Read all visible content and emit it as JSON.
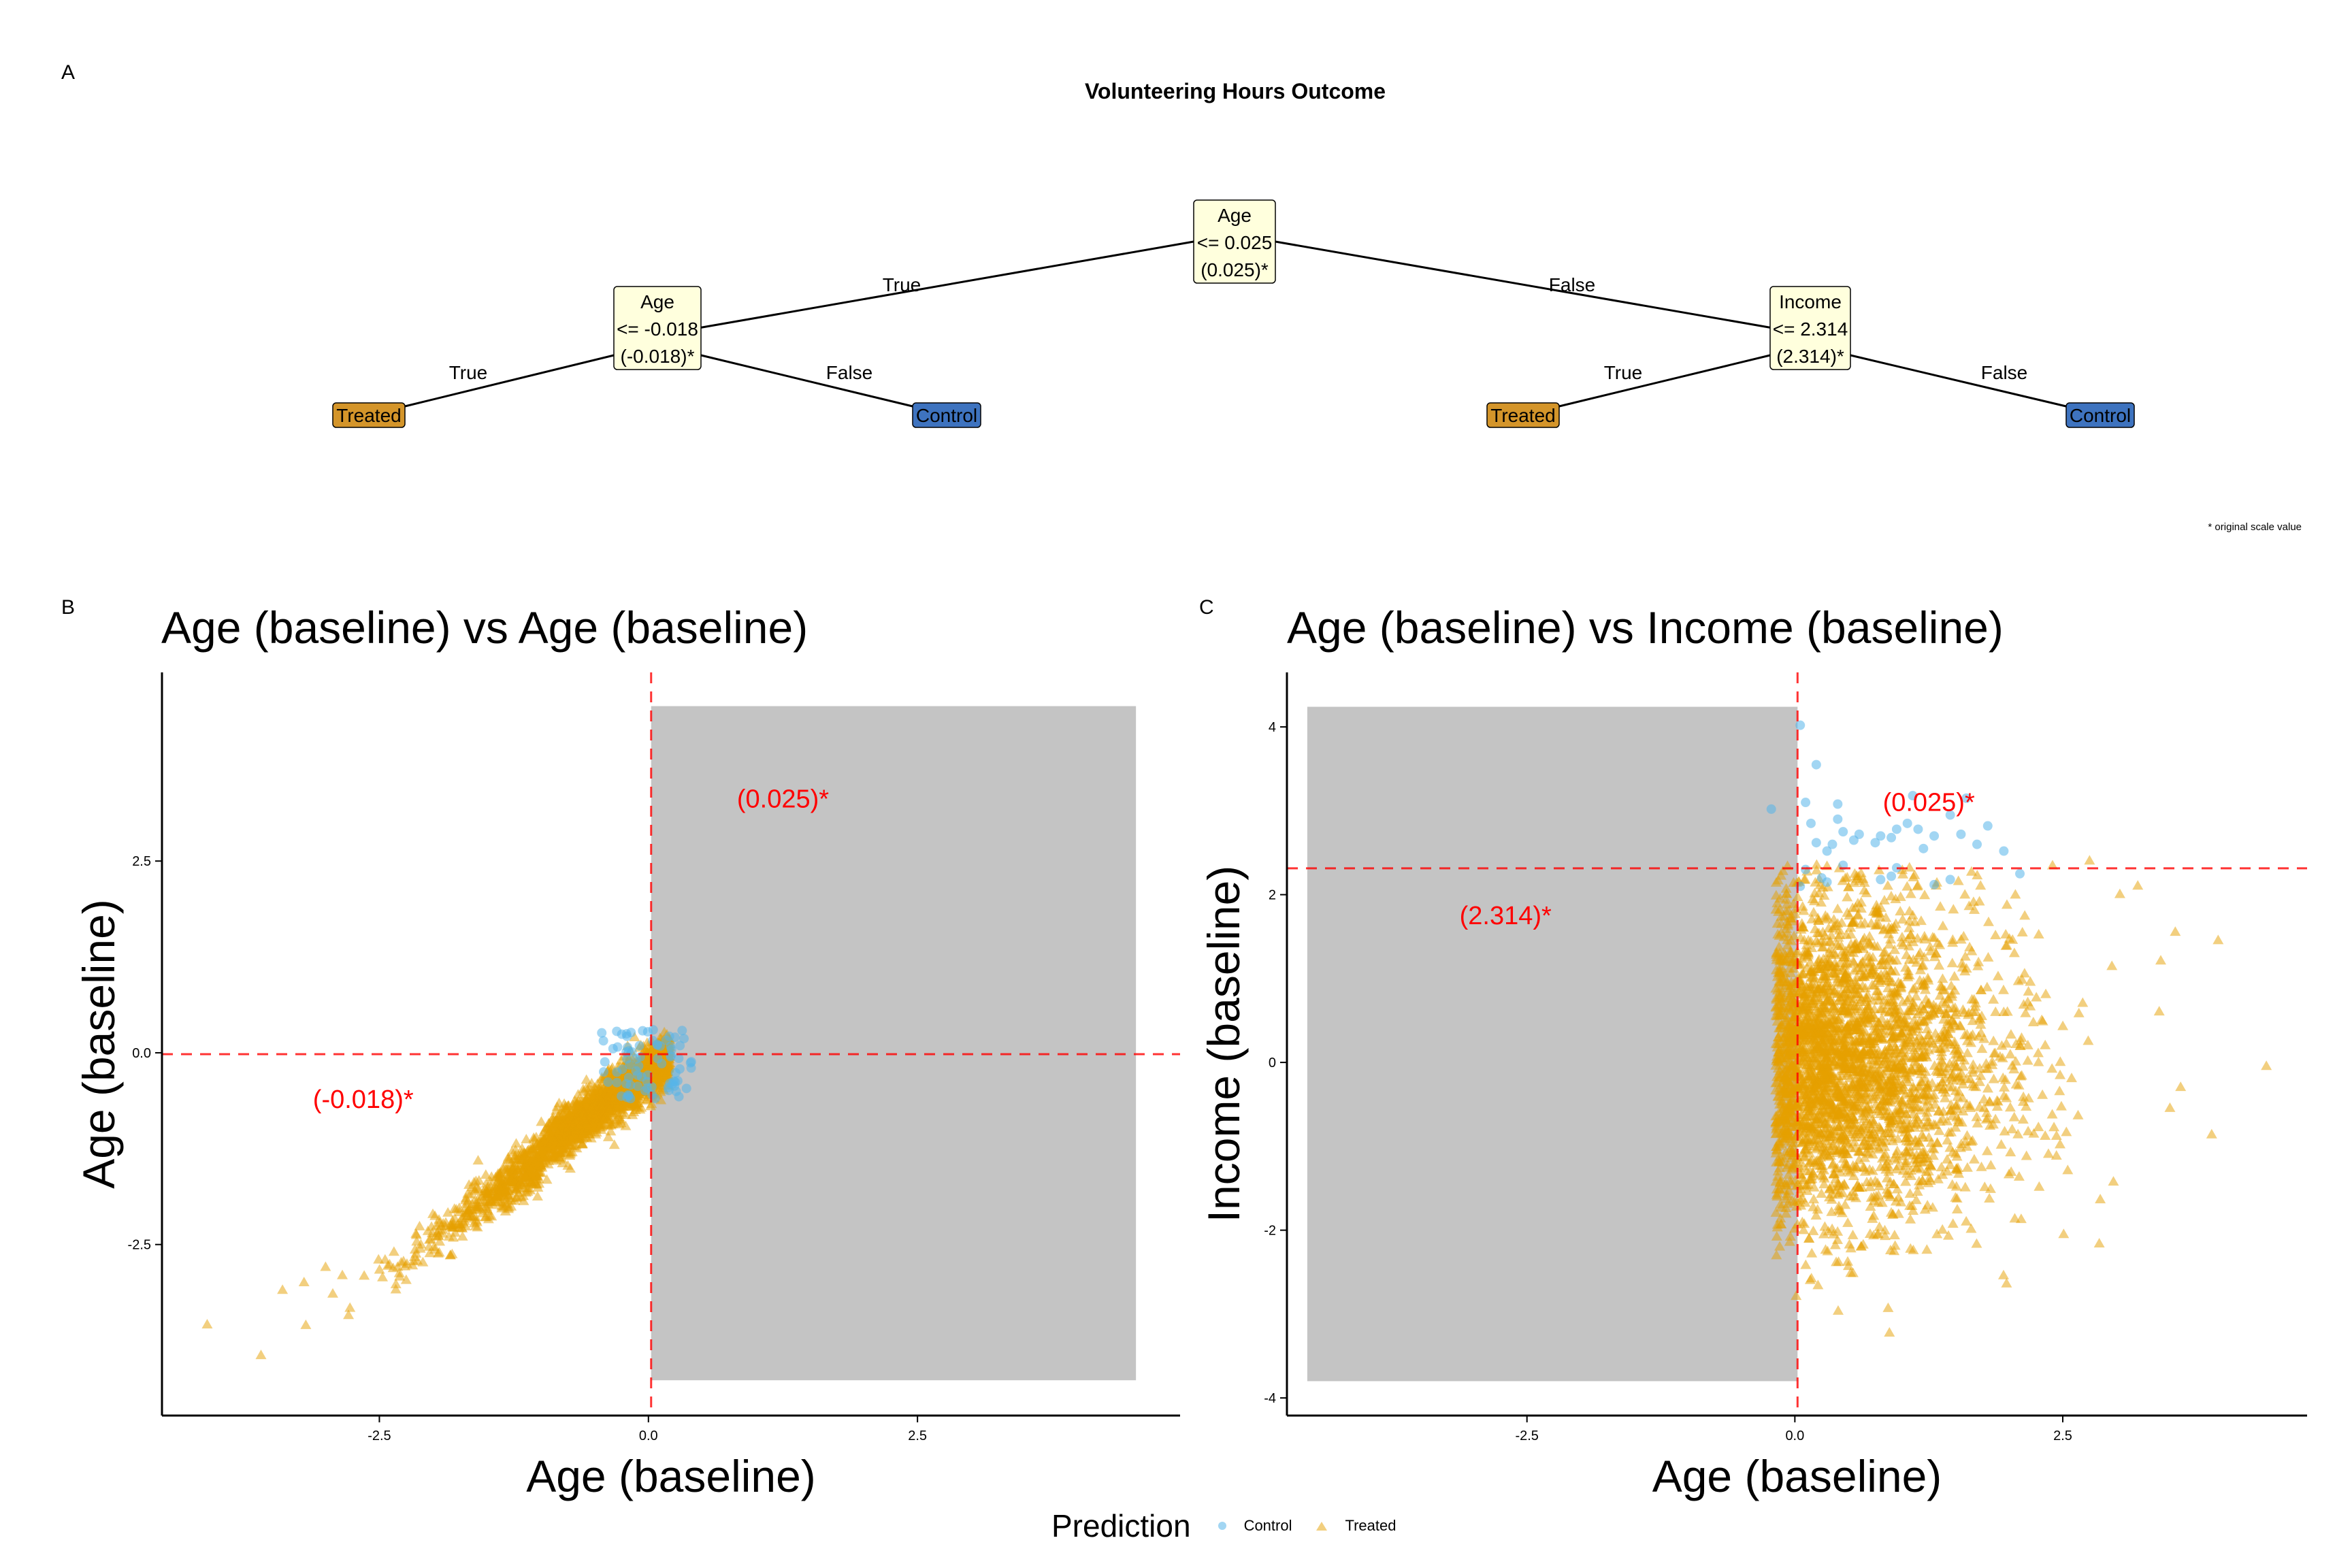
{
  "figure": {
    "panel_labels": [
      "A",
      "B",
      "C"
    ],
    "footnote": "* original scale value"
  },
  "tree": {
    "title": "Volunteering Hours Outcome",
    "nodes": [
      {
        "id": "root",
        "lines": [
          "Age",
          "<= 0.025",
          "(0.025)*"
        ]
      },
      {
        "id": "left",
        "lines": [
          "Age",
          "<= -0.018",
          "(-0.018)*"
        ]
      },
      {
        "id": "right",
        "lines": [
          "Income",
          "<= 2.314",
          "(2.314)*"
        ]
      }
    ],
    "leaves": [
      {
        "id": "ll",
        "label": "Treated",
        "color": "#D4952A"
      },
      {
        "id": "lr",
        "label": "Control",
        "color": "#3E73BF"
      },
      {
        "id": "rl",
        "label": "Treated",
        "color": "#D4952A"
      },
      {
        "id": "rr",
        "label": "Control",
        "color": "#3E73BF"
      }
    ],
    "edges": [
      {
        "from": "root",
        "to": "left",
        "label": "True"
      },
      {
        "from": "root",
        "to": "right",
        "label": "False"
      },
      {
        "from": "left",
        "to": "ll",
        "label": "True"
      },
      {
        "from": "left",
        "to": "lr",
        "label": "False"
      },
      {
        "from": "right",
        "to": "rl",
        "label": "True"
      },
      {
        "from": "right",
        "to": "rr",
        "label": "False"
      }
    ],
    "node_fill": "#FFFFDD"
  },
  "legend": {
    "title": "Prediction",
    "items": [
      {
        "label": "Control",
        "shape": "circle",
        "color": "#56B4E9"
      },
      {
        "label": "Treated",
        "shape": "triangle",
        "color": "#E69F00"
      }
    ]
  },
  "chart_data": [
    {
      "type": "scatter",
      "title": "Age (baseline) vs Age (baseline)",
      "xlabel": "Age (baseline)",
      "ylabel": "Age (baseline)",
      "xlim": [
        -4.52,
        4.94
      ],
      "ylim": [
        -4.73,
        4.96
      ],
      "xticks": [
        -2.5,
        0.0,
        2.5
      ],
      "xtick_labels": [
        "-2.5",
        "0.0",
        "2.5"
      ],
      "yticks": [
        -2.5,
        0.0,
        2.5
      ],
      "ytick_labels": [
        "-2.5",
        "0.0",
        "2.5"
      ],
      "grid": false,
      "vline": 0.025,
      "hline": -0.018,
      "threshold_color": "#FF0000",
      "shaded_region": {
        "x": [
          0.025,
          4.53
        ],
        "y": [
          -4.27,
          4.52
        ],
        "color": "#C4C4C4"
      },
      "annotations": [
        {
          "text": "(0.025)*",
          "x": 1.25,
          "y": 3.2
        },
        {
          "text": "(-0.018)*",
          "x": -2.65,
          "y": -0.72
        }
      ],
      "series": [
        {
          "name": "Treated",
          "shape": "triangle",
          "color": "#E69F00",
          "distribution": "diagonal band y≈x from x=-4.1 to x=0.2, spread ±0.35",
          "outliers": [
            [
              -4.1,
              -3.55
            ],
            [
              -3.6,
              -3.95
            ],
            [
              -3.4,
              -3.1
            ],
            [
              -3.2,
              -3.0
            ],
            [
              -3.0,
              -2.8
            ]
          ]
        },
        {
          "name": "Control",
          "shape": "circle",
          "color": "#56B4E9",
          "distribution": "small cluster x∈[-0.45,0.4], y∈[-0.6,0.35]"
        }
      ]
    },
    {
      "type": "scatter",
      "title": "Age (baseline) vs Income (baseline)",
      "xlabel": "Age (baseline)",
      "ylabel": "Income (baseline)",
      "xlim": [
        -4.74,
        4.78
      ],
      "ylim": [
        -4.21,
        4.65
      ],
      "xticks": [
        -2.5,
        0.0,
        2.5
      ],
      "xtick_labels": [
        "-2.5",
        "0.0",
        "2.5"
      ],
      "yticks": [
        -4,
        -2,
        0,
        2,
        4
      ],
      "ytick_labels": [
        "-4",
        "-2",
        "0",
        "2",
        "4"
      ],
      "grid": false,
      "vline": 0.025,
      "hline": 2.314,
      "threshold_color": "#FF0000",
      "shaded_region": {
        "x": [
          -4.55,
          0.025
        ],
        "y": [
          -3.8,
          4.24
        ],
        "color": "#C4C4C4"
      },
      "annotations": [
        {
          "text": "(0.025)*",
          "x": 1.25,
          "y": 3.0
        },
        {
          "text": "(2.314)*",
          "x": -2.7,
          "y": 1.65
        }
      ],
      "series": [
        {
          "name": "Treated",
          "shape": "triangle",
          "color": "#E69F00",
          "distribution": "x≥-0.2 (half-normal age), y~N(0,1) below 2.4",
          "outliers": [
            [
              4.4,
              -0.05
            ],
            [
              3.95,
              1.45
            ],
            [
              3.55,
              1.55
            ],
            [
              3.2,
              2.1
            ],
            [
              2.75,
              2.4
            ],
            [
              3.4,
              0.6
            ],
            [
              3.6,
              -0.3
            ],
            [
              3.5,
              -0.55
            ]
          ]
        },
        {
          "name": "Control",
          "shape": "circle",
          "color": "#56B4E9",
          "points": [
            [
              0.05,
              4.02
            ],
            [
              -0.22,
              3.02
            ],
            [
              0.2,
              3.55
            ],
            [
              0.1,
              3.1
            ],
            [
              0.4,
              3.08
            ],
            [
              1.1,
              3.18
            ],
            [
              1.6,
              3.15
            ],
            [
              0.15,
              2.85
            ],
            [
              0.4,
              2.9
            ],
            [
              1.45,
              2.95
            ],
            [
              0.45,
              2.75
            ],
            [
              0.6,
              2.72
            ],
            [
              0.8,
              2.7
            ],
            [
              0.95,
              2.78
            ],
            [
              1.05,
              2.85
            ],
            [
              1.15,
              2.78
            ],
            [
              1.8,
              2.82
            ],
            [
              0.2,
              2.62
            ],
            [
              0.35,
              2.6
            ],
            [
              0.55,
              2.65
            ],
            [
              0.75,
              2.62
            ],
            [
              0.9,
              2.68
            ],
            [
              1.3,
              2.7
            ],
            [
              1.55,
              2.72
            ],
            [
              1.7,
              2.6
            ],
            [
              0.3,
              2.52
            ],
            [
              1.2,
              2.55
            ],
            [
              1.95,
              2.52
            ],
            [
              0.45,
              2.35
            ],
            [
              0.95,
              2.32
            ],
            [
              0.1,
              2.3
            ],
            [
              0.25,
              2.2
            ],
            [
              0.3,
              2.15
            ],
            [
              0.8,
              2.18
            ],
            [
              0.9,
              2.22
            ],
            [
              1.3,
              2.12
            ],
            [
              1.45,
              2.18
            ],
            [
              2.1,
              2.25
            ],
            [
              0.05,
              2.1
            ]
          ]
        }
      ]
    }
  ]
}
